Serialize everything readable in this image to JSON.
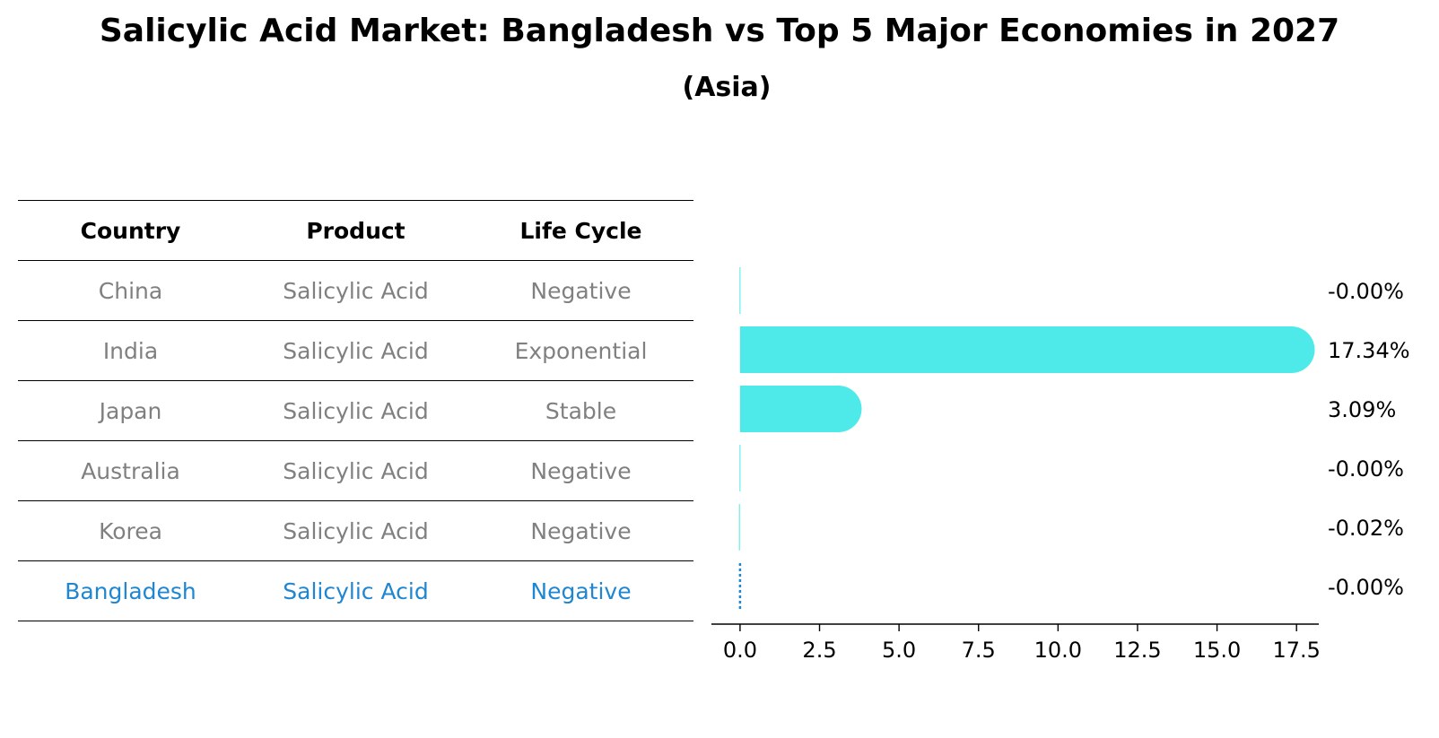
{
  "title": "Salicylic Acid Market: Bangladesh vs Top 5 Major Economies in 2027",
  "subtitle": "(Asia)",
  "table": {
    "headers": [
      "Country",
      "Product",
      "Life Cycle"
    ],
    "rows": [
      {
        "country": "China",
        "product": "Salicylic Acid",
        "life_cycle": "Negative",
        "highlight": false
      },
      {
        "country": "India",
        "product": "Salicylic Acid",
        "life_cycle": "Exponential",
        "highlight": false
      },
      {
        "country": "Japan",
        "product": "Salicylic Acid",
        "life_cycle": "Stable",
        "highlight": false
      },
      {
        "country": "Australia",
        "product": "Salicylic Acid",
        "life_cycle": "Negative",
        "highlight": false
      },
      {
        "country": "Korea",
        "product": "Salicylic Acid",
        "life_cycle": "Negative",
        "highlight": false
      },
      {
        "country": "Bangladesh",
        "product": "Salicylic Acid",
        "life_cycle": "Negative",
        "highlight": true
      }
    ]
  },
  "colors": {
    "bar": "#4eeaea",
    "highlight": "#1f86d1",
    "row_text": "#808080",
    "axis": "#000000"
  },
  "chart_data": {
    "type": "bar",
    "orientation": "horizontal",
    "title": "Salicylic Acid Market: Bangladesh vs Top 5 Major Economies in 2027",
    "subtitle": "(Asia)",
    "categories": [
      "China",
      "India",
      "Japan",
      "Australia",
      "Korea",
      "Bangladesh"
    ],
    "values": [
      -0.001,
      17.34,
      3.09,
      -0.001,
      -0.02,
      -0.001
    ],
    "labels": [
      "-0.00%",
      "17.34%",
      "3.09%",
      "-0.00%",
      "-0.02%",
      "-0.00%"
    ],
    "xlim": [
      -0.9,
      18.2
    ],
    "xticks": [
      0.0,
      2.5,
      5.0,
      7.5,
      10.0,
      12.5,
      15.0,
      17.5
    ],
    "xticklabels": [
      "0.0",
      "2.5",
      "5.0",
      "7.5",
      "10.0",
      "12.5",
      "15.0",
      "17.5"
    ],
    "xlabel": "",
    "ylabel": "",
    "grid": false,
    "highlight_category": "Bangladesh"
  }
}
